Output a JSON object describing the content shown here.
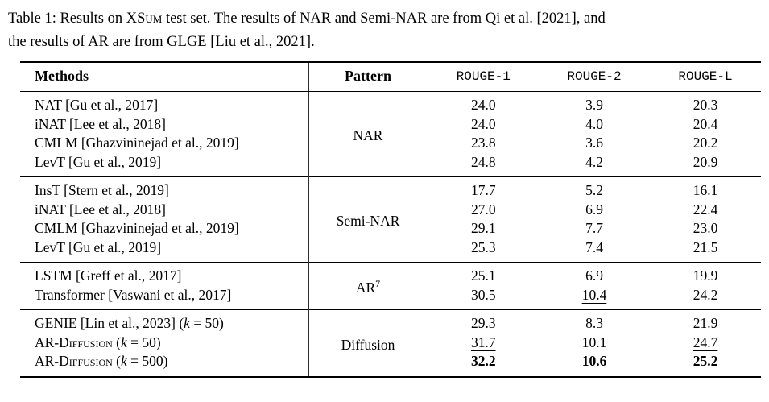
{
  "colors": {
    "text": "#000000",
    "rule": "#000000",
    "vertical_rule": "#2e2e2e",
    "background": "#ffffff"
  },
  "caption": {
    "line1_prefix": "Table 1: Results on ",
    "dataset": "XSum",
    "line1_suffix": " test set. The results of NAR and Semi-NAR are from Qi et al. [2021], and",
    "line2": "the results of AR are from GLGE [Liu et al., 2021]."
  },
  "table": {
    "headers": {
      "methods": "Methods",
      "pattern": "Pattern",
      "rouge1": "ROUGE-1",
      "rouge2": "ROUGE-2",
      "rougeL": "ROUGE-L"
    },
    "groups": [
      {
        "pattern": "NAR",
        "rows": [
          {
            "m_plain": "NAT [Gu et al., 2017]",
            "r1": "24.0",
            "r2": "3.9",
            "rl": "20.3"
          },
          {
            "m_plain": "iNAT [Lee et al., 2018]",
            "r1": "24.0",
            "r2": "4.0",
            "rl": "20.4"
          },
          {
            "m_plain": "CMLM [Ghazvininejad et al., 2019]",
            "r1": "23.8",
            "r2": "3.6",
            "rl": "20.2"
          },
          {
            "m_plain": "LevT [Gu et al., 2019]",
            "r1": "24.8",
            "r2": "4.2",
            "rl": "20.9"
          }
        ]
      },
      {
        "pattern": "Semi-NAR",
        "rows": [
          {
            "m_plain": "InsT [Stern et al., 2019]",
            "r1": "17.7",
            "r2": "5.2",
            "rl": "16.1"
          },
          {
            "m_plain": "iNAT [Lee et al., 2018]",
            "r1": "27.0",
            "r2": "6.9",
            "rl": "22.4"
          },
          {
            "m_plain": "CMLM [Ghazvininejad et al., 2019]",
            "r1": "29.1",
            "r2": "7.7",
            "rl": "23.0"
          },
          {
            "m_plain": "LevT [Gu et al., 2019]",
            "r1": "25.3",
            "r2": "7.4",
            "rl": "21.5"
          }
        ]
      },
      {
        "pattern": "AR",
        "pattern_sup": "7",
        "rows": [
          {
            "m_plain": "LSTM [Greff et al., 2017]",
            "r1": "25.1",
            "r2": "6.9",
            "rl": "19.9"
          },
          {
            "m_plain": "Transformer [Vaswani et al., 2017]",
            "r1": "30.5",
            "r2": "10.4",
            "rl": "24.2"
          }
        ]
      },
      {
        "pattern": "Diffusion",
        "rows": [
          {
            "m_plain": "GENIE [Lin et al., 2023] ",
            "k_pre": "(",
            "k": "k",
            "k_post": " = 50)",
            "r1": "29.3",
            "r2": "8.3",
            "rl": "21.9"
          },
          {
            "m_sc": "AR-Diffusion",
            "k_pre": " (",
            "k": "k",
            "k_post": " = 50)",
            "r1": "31.7",
            "r2": "10.1",
            "rl": "24.7"
          },
          {
            "m_sc": "AR-Diffusion",
            "k_pre": " (",
            "k": "k",
            "k_post": " = 500)",
            "r1": "32.2",
            "r2": "10.6",
            "rl": "25.2"
          }
        ]
      }
    ]
  }
}
